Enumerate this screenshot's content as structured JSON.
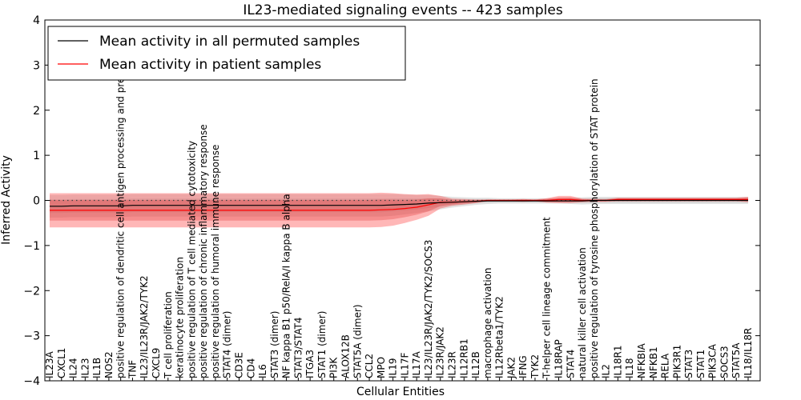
{
  "chart_data": {
    "type": "line",
    "title": "IL23-mediated signaling events -- 423 samples",
    "xlabel": "Cellular Entities",
    "ylabel": "Inferred Activity",
    "ylim": [
      -4,
      4
    ],
    "yticks": [
      -4,
      -3,
      -2,
      -1,
      0,
      1,
      2,
      3,
      4
    ],
    "ytick_labels": [
      "−4",
      "−3",
      "−2",
      "−1",
      "0",
      "1",
      "2",
      "3",
      "4"
    ],
    "grid": false,
    "legend_position": "top-left",
    "categories": [
      "IL23A",
      "CXCL1",
      "IL24",
      "IL23",
      "IL1B",
      "NOS2",
      "positive regulation of dendritic cell antigen processing and presentation",
      "TNF",
      "IL23/IL23R/JAK2/TYK2",
      "CXCL9",
      "T cell proliferation",
      "keratinocyte proliferation",
      "positive regulation of T cell mediated cytotoxicity",
      "positive regulation of chronic inflammatory response",
      "positive regulation of humoral immune response",
      "STAT4 (dimer)",
      "CD3E",
      "CD4",
      "IL6",
      "STAT3 (dimer)",
      "NF kappa B1 p50/RelA/I kappa B alpha",
      "STAT3/STAT4",
      "ITGA3",
      "STAT1 (dimer)",
      "PI3K",
      "ALOX12B",
      "STAT5A (dimer)",
      "CCL2",
      "MPO",
      "IL19",
      "IL17F",
      "IL17A",
      "IL23/IL23R/JAK2/TYK2/SOCS3",
      "IL23R/JAK2",
      "IL23R",
      "IL12RB1",
      "IL12B",
      "macrophage activation",
      "IL12Rbeta1/TYK2",
      "JAK2",
      "IFNG",
      "TYK2",
      "T-helper cell lineage commitment",
      "IL18RAP",
      "STAT4",
      "natural killer cell activation",
      "positive regulation of tyrosine phosphorylation of STAT protein",
      "IL2",
      "IL18R1",
      "IL18",
      "NFKBIA",
      "NFKB1",
      "RELA",
      "PIK3R1",
      "STAT3",
      "STAT1",
      "PIK3CA",
      "SOCS3",
      "STAT5A",
      "IL18/IL18R"
    ],
    "series": [
      {
        "name": "Mean activity in all permuted samples",
        "color": "#000000",
        "values": [
          -0.13,
          -0.13,
          -0.12,
          -0.12,
          -0.12,
          -0.12,
          -0.12,
          -0.11,
          -0.11,
          -0.11,
          -0.11,
          -0.11,
          -0.11,
          -0.11,
          -0.11,
          -0.11,
          -0.11,
          -0.11,
          -0.11,
          -0.11,
          -0.11,
          -0.11,
          -0.11,
          -0.11,
          -0.11,
          -0.11,
          -0.11,
          -0.11,
          -0.11,
          -0.1,
          -0.09,
          -0.08,
          -0.06,
          -0.05,
          -0.04,
          -0.03,
          -0.02,
          -0.01,
          -0.01,
          -0.01,
          -0.01,
          -0.01,
          -0.01,
          -0.01,
          -0.01,
          -0.01,
          0.0,
          0.0,
          0.0,
          0.0,
          0.0,
          0.0,
          0.0,
          0.0,
          0.0,
          0.0,
          0.0,
          0.0,
          0.0,
          0.0
        ],
        "band": [
          0.25,
          0.25,
          0.25,
          0.25,
          0.25,
          0.25,
          0.25,
          0.25,
          0.25,
          0.25,
          0.25,
          0.25,
          0.25,
          0.25,
          0.25,
          0.25,
          0.25,
          0.25,
          0.25,
          0.25,
          0.25,
          0.25,
          0.25,
          0.25,
          0.25,
          0.25,
          0.25,
          0.25,
          0.25,
          0.24,
          0.22,
          0.2,
          0.18,
          0.15,
          0.12,
          0.1,
          0.08,
          0.07,
          0.06,
          0.06,
          0.06,
          0.06,
          0.06,
          0.06,
          0.07,
          0.08,
          0.08,
          0.08,
          0.08,
          0.08,
          0.08,
          0.08,
          0.08,
          0.08,
          0.08,
          0.08,
          0.08,
          0.08,
          0.08,
          0.08
        ]
      },
      {
        "name": "Mean activity in patient samples",
        "color": "#ff0000",
        "values": [
          -0.22,
          -0.22,
          -0.22,
          -0.22,
          -0.22,
          -0.22,
          -0.22,
          -0.22,
          -0.22,
          -0.22,
          -0.22,
          -0.22,
          -0.22,
          -0.22,
          -0.22,
          -0.22,
          -0.22,
          -0.22,
          -0.22,
          -0.22,
          -0.22,
          -0.22,
          -0.22,
          -0.22,
          -0.22,
          -0.22,
          -0.22,
          -0.22,
          -0.21,
          -0.2,
          -0.18,
          -0.15,
          -0.1,
          -0.04,
          -0.04,
          -0.03,
          -0.02,
          0.0,
          0.0,
          0.0,
          0.0,
          0.0,
          0.0,
          0.02,
          0.02,
          0.0,
          0.0,
          0.0,
          0.02,
          0.02,
          0.02,
          0.02,
          0.02,
          0.02,
          0.02,
          0.02,
          0.02,
          0.02,
          0.02,
          0.02
        ],
        "band": [
          0.38,
          0.38,
          0.38,
          0.38,
          0.38,
          0.38,
          0.38,
          0.38,
          0.38,
          0.38,
          0.38,
          0.38,
          0.38,
          0.38,
          0.38,
          0.38,
          0.38,
          0.38,
          0.38,
          0.38,
          0.38,
          0.38,
          0.38,
          0.38,
          0.38,
          0.38,
          0.38,
          0.38,
          0.38,
          0.36,
          0.32,
          0.28,
          0.24,
          0.14,
          0.08,
          0.06,
          0.04,
          0.02,
          0.02,
          0.02,
          0.03,
          0.02,
          0.05,
          0.08,
          0.08,
          0.04,
          0.03,
          0.03,
          0.04,
          0.04,
          0.04,
          0.04,
          0.04,
          0.04,
          0.04,
          0.04,
          0.04,
          0.04,
          0.04,
          0.06
        ]
      }
    ],
    "reference_line": 0
  }
}
